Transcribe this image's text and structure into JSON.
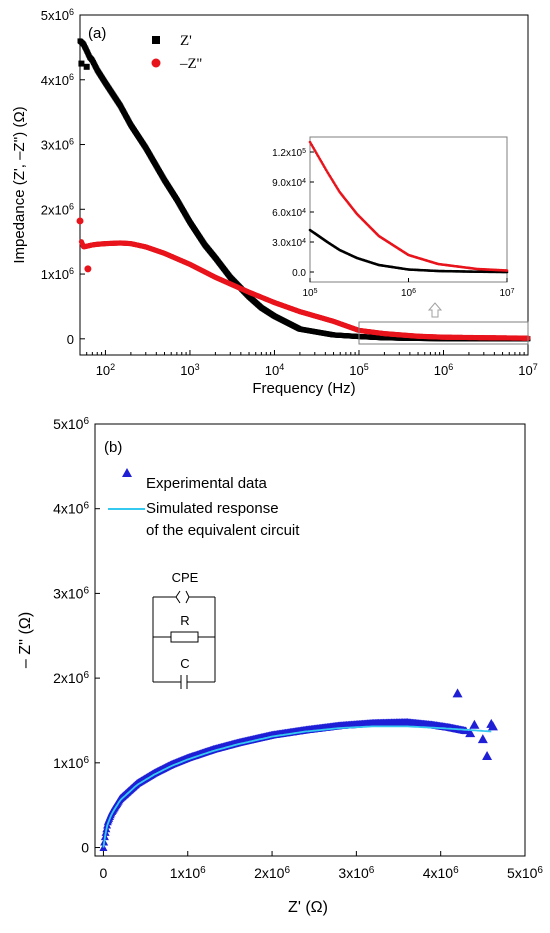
{
  "colors": {
    "zreal": "#000000",
    "zimag": "#e8141c",
    "experimental": "#1f1fd6",
    "simulated": "#36c9f0",
    "box": "#7f7f7f",
    "arrow": "#a0a0a0"
  },
  "chart_data": [
    {
      "type": "scatter",
      "panel": "(a)",
      "xlabel": "Frequency (Hz)",
      "ylabel": "Impedance (Z', –Z'') (Ω)",
      "xscale": "log",
      "xlim": [
        50,
        10000000
      ],
      "ylim": [
        -250000,
        5000000
      ],
      "x_ticks": [
        {
          "value": 100,
          "mant": "10",
          "exp": "2"
        },
        {
          "value": 1000,
          "mant": "10",
          "exp": "3"
        },
        {
          "value": 10000,
          "mant": "10",
          "exp": "4"
        },
        {
          "value": 100000,
          "mant": "10",
          "exp": "5"
        },
        {
          "value": 1000000,
          "mant": "10",
          "exp": "6"
        },
        {
          "value": 10000000,
          "mant": "10",
          "exp": "7"
        }
      ],
      "y_ticks": [
        {
          "value": 0,
          "mant": "0",
          "exp": ""
        },
        {
          "value": 1000000,
          "mant": "1x10",
          "exp": "6"
        },
        {
          "value": 2000000,
          "mant": "2x10",
          "exp": "6"
        },
        {
          "value": 3000000,
          "mant": "3x10",
          "exp": "6"
        },
        {
          "value": 4000000,
          "mant": "4x10",
          "exp": "6"
        },
        {
          "value": 5000000,
          "mant": "5x10",
          "exp": "6"
        }
      ],
      "legend_position": "top-left",
      "series": [
        {
          "name": "Z'",
          "marker": "square",
          "x": [
            50,
            55,
            60,
            65,
            70,
            80,
            100,
            150,
            200,
            300,
            500,
            700,
            1000,
            1500,
            2000,
            3000,
            5000,
            7000,
            10000,
            20000,
            50000,
            100000,
            200000,
            500000,
            1000000,
            10000000
          ],
          "y": [
            4600000,
            4550000,
            4450000,
            4350000,
            4300000,
            4150000,
            3950000,
            3600000,
            3300000,
            2950000,
            2450000,
            2150000,
            1800000,
            1450000,
            1250000,
            950000,
            650000,
            480000,
            350000,
            150000,
            60000,
            35000,
            15000,
            5000,
            2000,
            500
          ]
        },
        {
          "name": "–Z''",
          "marker": "circle",
          "x": [
            50,
            52,
            55,
            60,
            70,
            80,
            100,
            150,
            200,
            300,
            500,
            1000,
            2000,
            5000,
            10000,
            20000,
            50000,
            100000,
            200000,
            500000,
            1000000,
            10000000
          ],
          "y": [
            1820000,
            1500000,
            1420000,
            1430000,
            1450000,
            1460000,
            1470000,
            1480000,
            1470000,
            1420000,
            1320000,
            1150000,
            950000,
            720000,
            560000,
            420000,
            270000,
            130000,
            80000,
            40000,
            25000,
            10000
          ]
        },
        {
          "name": "",
          "marker": "square",
          "x": [
            52,
            60
          ],
          "y": [
            4250000,
            4200000
          ]
        },
        {
          "name": "",
          "marker": "circle",
          "x": [
            62
          ],
          "y": [
            1080000
          ]
        }
      ],
      "inset": {
        "xscale": "log",
        "xlim": [
          100000,
          10000000
        ],
        "ylim": [
          -10000,
          135000
        ],
        "x_ticks": [
          {
            "value": 100000,
            "mant": "10",
            "exp": "5"
          },
          {
            "value": 1000000,
            "mant": "10",
            "exp": "6"
          },
          {
            "value": 10000000,
            "mant": "10",
            "exp": "7"
          }
        ],
        "y_ticks": [
          {
            "value": 0,
            "mant": "0.0",
            "exp": ""
          },
          {
            "value": 30000,
            "mant": "3.0x10",
            "exp": "4"
          },
          {
            "value": 60000,
            "mant": "6.0x10",
            "exp": "4"
          },
          {
            "value": 90000,
            "mant": "9.0x10",
            "exp": "4"
          },
          {
            "value": 120000,
            "mant": "1.2x10",
            "exp": "5"
          }
        ],
        "series": [
          {
            "name": "Z'",
            "x": [
              100000,
              150000,
              200000,
              300000,
              500000,
              1000000,
              2000000,
              5000000,
              10000000
            ],
            "y": [
              42000,
              30000,
              22000,
              14000,
              7000,
              2500,
              1000,
              300,
              0
            ]
          },
          {
            "name": "–Z''",
            "x": [
              100000,
              150000,
              200000,
              300000,
              500000,
              1000000,
              2000000,
              5000000,
              10000000
            ],
            "y": [
              130000,
              100000,
              80000,
              58000,
              36000,
              17000,
              8000,
              3000,
              1500
            ]
          }
        ]
      }
    },
    {
      "type": "scatter",
      "panel": "(b)",
      "xlabel": "Z' (Ω)",
      "ylabel": "– Z'' (Ω)",
      "xlim": [
        -100000,
        5000000
      ],
      "ylim": [
        -100000,
        5000000
      ],
      "x_ticks": [
        {
          "value": 0,
          "mant": "0",
          "exp": ""
        },
        {
          "value": 1000000,
          "mant": "1x10",
          "exp": "6"
        },
        {
          "value": 2000000,
          "mant": "2x10",
          "exp": "6"
        },
        {
          "value": 3000000,
          "mant": "3x10",
          "exp": "6"
        },
        {
          "value": 4000000,
          "mant": "4x10",
          "exp": "6"
        },
        {
          "value": 5000000,
          "mant": "5x10",
          "exp": "6"
        }
      ],
      "y_ticks": [
        {
          "value": 0,
          "mant": "0",
          "exp": ""
        },
        {
          "value": 1000000,
          "mant": "1x10",
          "exp": "6"
        },
        {
          "value": 2000000,
          "mant": "2x10",
          "exp": "6"
        },
        {
          "value": 3000000,
          "mant": "3x10",
          "exp": "6"
        },
        {
          "value": 4000000,
          "mant": "4x10",
          "exp": "6"
        },
        {
          "value": 5000000,
          "mant": "5x10",
          "exp": "6"
        }
      ],
      "legend_position": "top-left",
      "series": [
        {
          "name": "Experimental data",
          "marker": "triangle",
          "x": [
            0,
            20000,
            50000,
            100000,
            200000,
            400000,
            600000,
            800000,
            1000000,
            1300000,
            1600000,
            2000000,
            2400000,
            2800000,
            3200000,
            3600000,
            3900000,
            4100000,
            4300000
          ],
          "y": [
            0,
            150000,
            300000,
            420000,
            580000,
            760000,
            880000,
            980000,
            1060000,
            1160000,
            1240000,
            1330000,
            1390000,
            1440000,
            1470000,
            1480000,
            1450000,
            1420000,
            1380000
          ]
        },
        {
          "name": "",
          "marker": "triangle",
          "x": [
            4200000,
            4350000,
            4400000,
            4500000,
            4550000,
            4600000,
            4620000
          ],
          "y": [
            1820000,
            1350000,
            1450000,
            1280000,
            1080000,
            1460000,
            1430000
          ]
        },
        {
          "name": "Simulated response",
          "name_line2": "of the equivalent circuit",
          "marker": "line",
          "x": [
            0,
            20000,
            50000,
            100000,
            200000,
            400000,
            600000,
            800000,
            1000000,
            1300000,
            1600000,
            2000000,
            2400000,
            2800000,
            3200000,
            3600000,
            4000000,
            4300000,
            4600000
          ],
          "y": [
            0,
            140000,
            280000,
            400000,
            560000,
            740000,
            860000,
            960000,
            1040000,
            1140000,
            1220000,
            1310000,
            1370000,
            1410000,
            1430000,
            1430000,
            1410000,
            1390000,
            1370000
          ]
        }
      ],
      "circuit": {
        "labels": [
          "CPE",
          "R",
          "C"
        ]
      }
    }
  ]
}
